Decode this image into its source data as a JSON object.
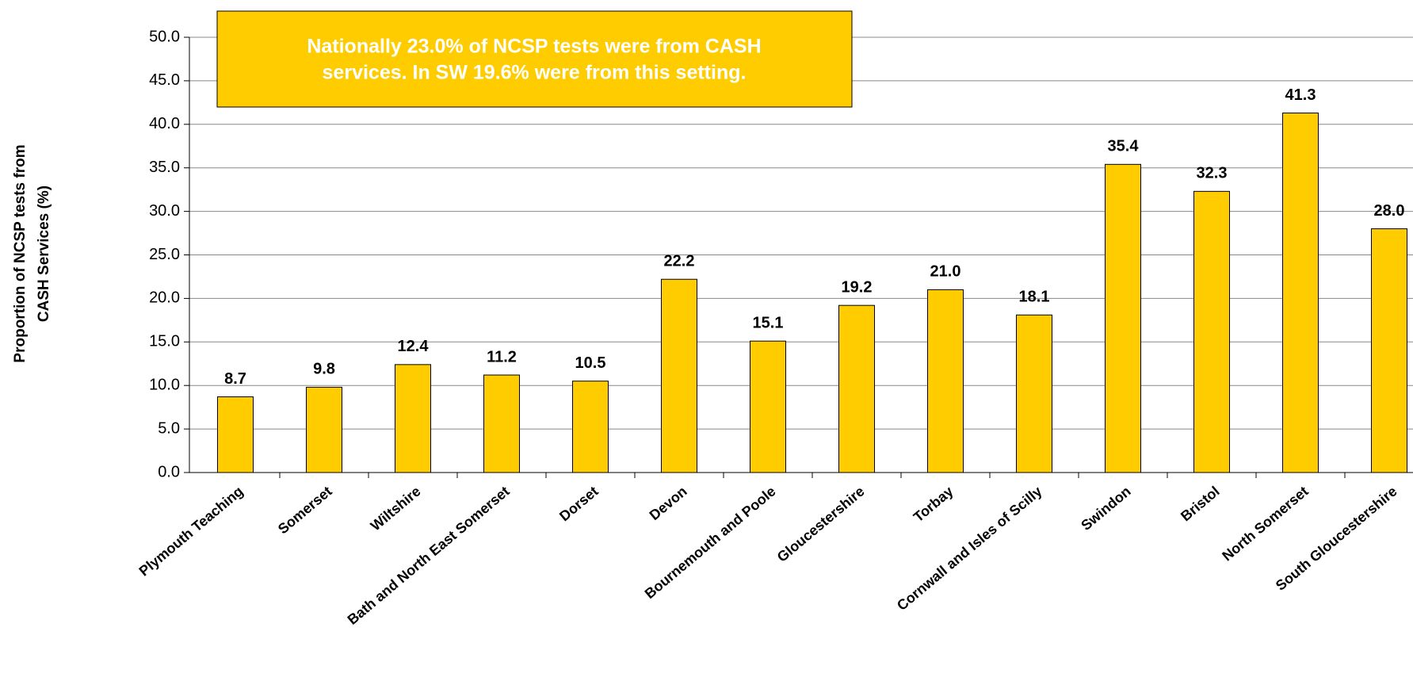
{
  "chart_data": {
    "type": "bar",
    "ylabel_lines": [
      "Proportion of NCSP tests from",
      "CASH Services (%)"
    ],
    "annotation_lines": [
      "Nationally 23.0% of NCSP tests were from CASH",
      "services. In SW 19.6% were from this setting."
    ],
    "categories": [
      "Plymouth Teaching",
      "Somerset",
      "Wiltshire",
      "Bath and North East Somerset",
      "Dorset",
      "Devon",
      "Bournemouth and Poole",
      "Gloucestershire",
      "Torbay",
      "Cornwall and Isles of Scilly",
      "Swindon",
      "Bristol",
      "North Somerset",
      "South Gloucestershire"
    ],
    "values": [
      8.7,
      9.8,
      12.4,
      11.2,
      10.5,
      22.2,
      15.1,
      19.2,
      21.0,
      18.1,
      35.4,
      32.3,
      41.3,
      28.0
    ],
    "value_labels": [
      "8.7",
      "9.8",
      "12.4",
      "11.2",
      "10.5",
      "22.2",
      "15.1",
      "19.2",
      "21.0",
      "18.1",
      "35.4",
      "32.3",
      "41.3",
      "28.0"
    ],
    "color": "#FFCC00",
    "ylim": [
      0,
      50
    ],
    "yticks": [
      {
        "value": 0,
        "label": "0.0"
      },
      {
        "value": 5,
        "label": "5.0"
      },
      {
        "value": 10,
        "label": "10.0"
      },
      {
        "value": 15,
        "label": "15.0"
      },
      {
        "value": 20,
        "label": "20.0"
      },
      {
        "value": 25,
        "label": "25.0"
      },
      {
        "value": 30,
        "label": "30.0"
      },
      {
        "value": 35,
        "label": "35.0"
      },
      {
        "value": 40,
        "label": "40.0"
      },
      {
        "value": 45,
        "label": "45.0"
      },
      {
        "value": 50,
        "label": "50.0"
      }
    ],
    "grid": true
  }
}
